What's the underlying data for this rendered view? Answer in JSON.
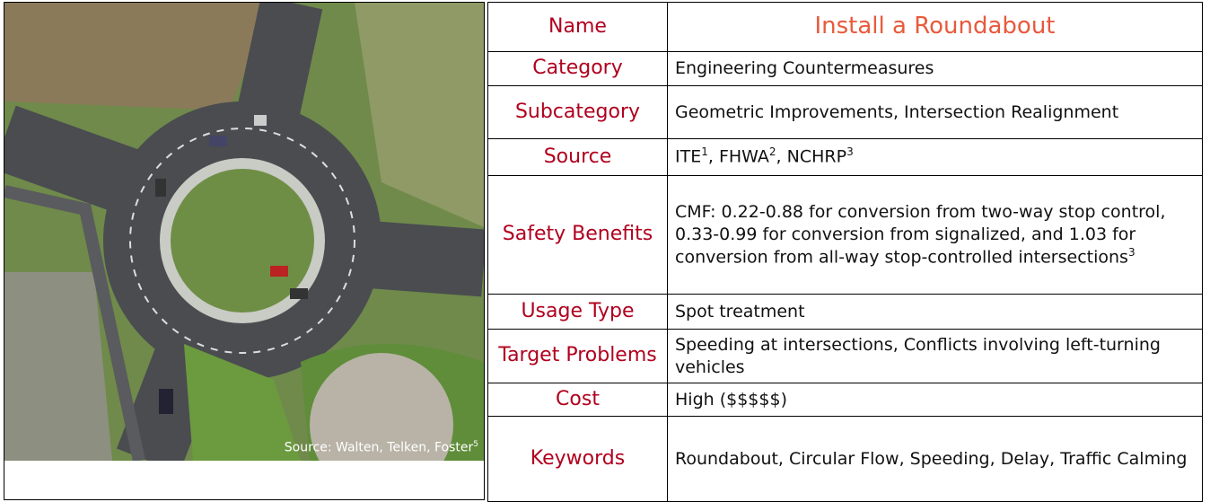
{
  "photo": {
    "caption": "Source: Walten, Telken, Foster",
    "caption_sup": "5"
  },
  "table": {
    "rows": [
      {
        "label": "Name",
        "value": "Install a Roundabout"
      },
      {
        "label": "Category",
        "value": "Engineering Countermeasures"
      },
      {
        "label": "Subcategory",
        "value": "Geometric Improvements, Intersection Realignment"
      },
      {
        "label": "Source",
        "value": [
          {
            "text": "ITE",
            "sup": "1"
          },
          {
            "text": ", FHWA",
            "sup": "2"
          },
          {
            "text": ", NCHRP",
            "sup": "3"
          }
        ]
      },
      {
        "label": "Safety Benefits",
        "value": "CMF: 0.22-0.88 for conversion from two-way stop control, 0.33-0.99 for conversion from signalized, and 1.03 for conversion from all-way stop-controlled intersections",
        "sup": "3"
      },
      {
        "label": "Usage Type",
        "value": "Spot treatment"
      },
      {
        "label": "Target Problems",
        "value": "Speeding at intersections, Conflicts involving left-turning vehicles"
      },
      {
        "label": "Cost",
        "value": "High ($$$$$)"
      },
      {
        "label": "Keywords",
        "value": "Roundabout, Circular Flow, Speeding, Delay, Traffic Calming"
      }
    ]
  }
}
